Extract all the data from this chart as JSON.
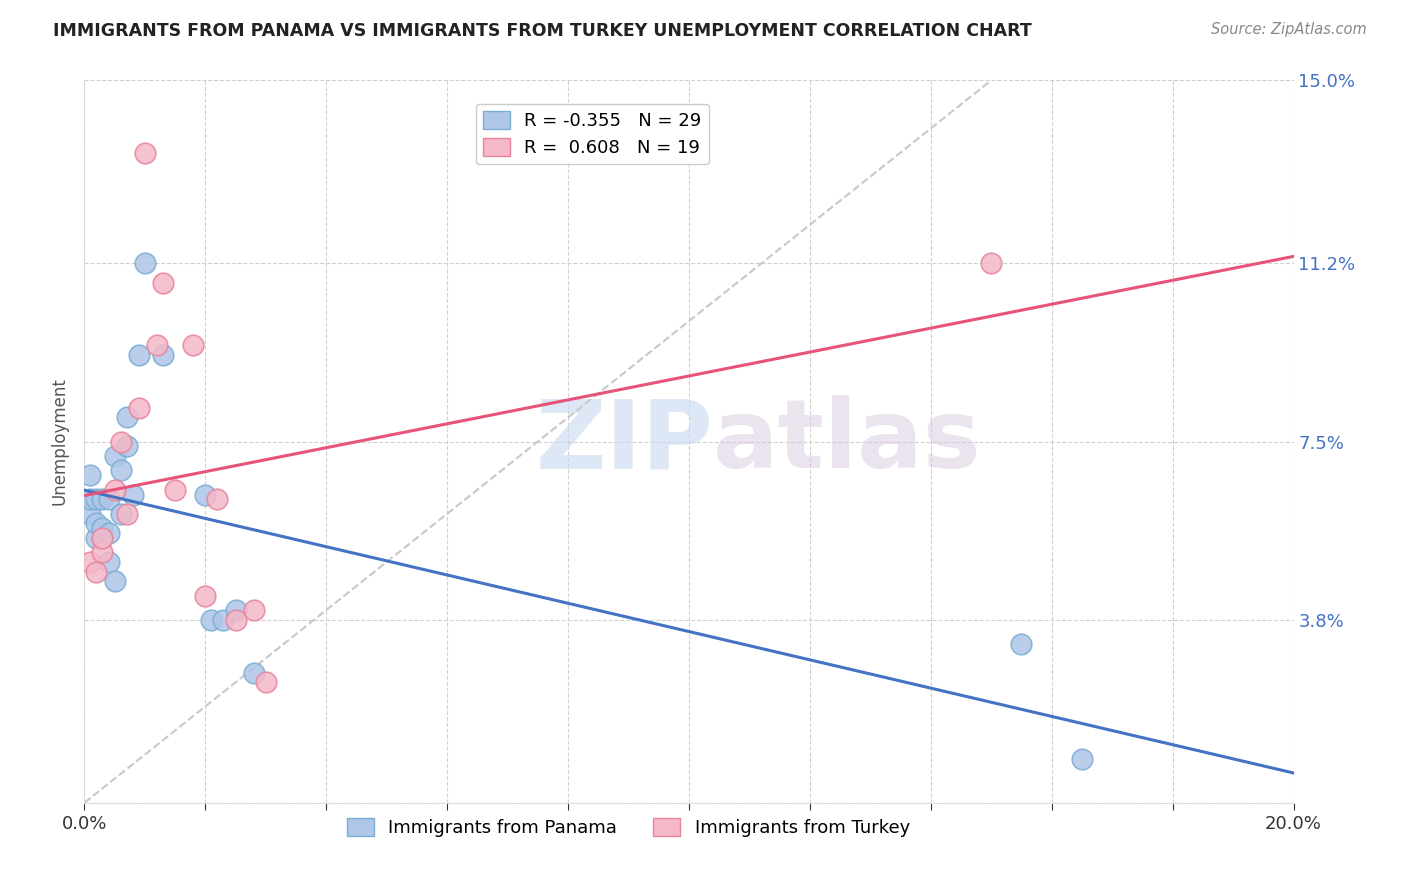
{
  "title": "IMMIGRANTS FROM PANAMA VS IMMIGRANTS FROM TURKEY UNEMPLOYMENT CORRELATION CHART",
  "source": "Source: ZipAtlas.com",
  "ylabel": "Unemployment",
  "xlim": [
    0.0,
    0.2
  ],
  "ylim": [
    0.0,
    0.15
  ],
  "ytick_positions": [
    0.0,
    0.038,
    0.075,
    0.112,
    0.15
  ],
  "ytick_labels": [
    "",
    "3.8%",
    "7.5%",
    "11.2%",
    "15.0%"
  ],
  "background_color": "#ffffff",
  "watermark_zip": "ZIP",
  "watermark_atlas": "atlas",
  "panama_color": "#aec6e8",
  "turkey_color": "#f4b8c8",
  "panama_edge_color": "#7aaed4",
  "turkey_edge_color": "#e8849a",
  "trend_panama_color": "#4472c4",
  "trend_turkey_color": "#e8537a",
  "trend_diagonal_color": "#c8c8c8",
  "legend_r_panama": "-0.355",
  "legend_n_panama": "29",
  "legend_r_turkey": "0.608",
  "legend_n_turkey": "19",
  "panama_x": [
    0.001,
    0.001,
    0.001,
    0.002,
    0.002,
    0.002,
    0.003,
    0.003,
    0.003,
    0.004,
    0.004,
    0.004,
    0.005,
    0.005,
    0.006,
    0.006,
    0.007,
    0.007,
    0.008,
    0.009,
    0.01,
    0.013,
    0.02,
    0.021,
    0.023,
    0.025,
    0.028,
    0.155,
    0.165
  ],
  "panama_y": [
    0.06,
    0.063,
    0.068,
    0.055,
    0.063,
    0.058,
    0.055,
    0.057,
    0.063,
    0.05,
    0.056,
    0.063,
    0.046,
    0.072,
    0.06,
    0.069,
    0.074,
    0.08,
    0.064,
    0.093,
    0.112,
    0.093,
    0.064,
    0.038,
    0.038,
    0.04,
    0.027,
    0.033,
    0.009
  ],
  "turkey_x": [
    0.001,
    0.002,
    0.003,
    0.003,
    0.005,
    0.006,
    0.007,
    0.009,
    0.01,
    0.012,
    0.013,
    0.015,
    0.018,
    0.02,
    0.022,
    0.025,
    0.028,
    0.03,
    0.15
  ],
  "turkey_y": [
    0.05,
    0.048,
    0.052,
    0.055,
    0.065,
    0.075,
    0.06,
    0.082,
    0.135,
    0.095,
    0.108,
    0.065,
    0.095,
    0.043,
    0.063,
    0.038,
    0.04,
    0.025,
    0.112
  ]
}
